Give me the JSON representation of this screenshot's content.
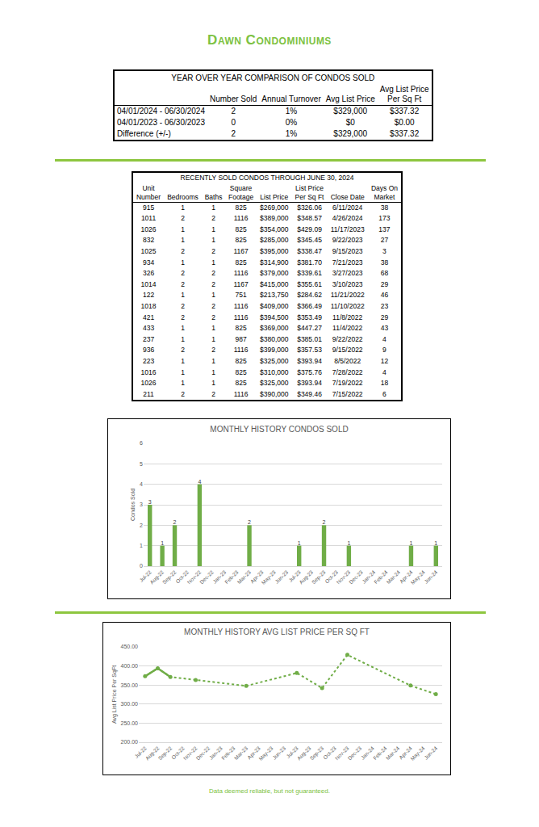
{
  "header": {
    "title": "Dawn Condominiums"
  },
  "comparison_table": {
    "title": "YEAR OVER YEAR COMPARISON OF CONDOS SOLD",
    "columns": [
      [
        "Number Sold"
      ],
      [
        "Annual Turnover"
      ],
      [
        "Avg List Price"
      ],
      [
        "Avg List Price",
        "Per Sq Ft"
      ]
    ],
    "rows": [
      {
        "label": "04/01/2024 - 06/30/2024",
        "cells": [
          "2",
          "1%",
          "$329,000",
          "$337.32"
        ]
      },
      {
        "label": "04/01/2023 - 06/30/2023",
        "cells": [
          "0",
          "0%",
          "$0",
          "$0.00"
        ]
      },
      {
        "label": "Difference (+/-)",
        "cells": [
          "2",
          "1%",
          "$329,000",
          "$337.32"
        ]
      }
    ]
  },
  "recent_sales_table": {
    "title": "RECENTLY SOLD CONDOS THROUGH JUNE 30, 2024",
    "columns": [
      [
        "Unit",
        "Number"
      ],
      [
        "Bedrooms"
      ],
      [
        "Baths"
      ],
      [
        "Square",
        "Footage"
      ],
      [
        "List Price"
      ],
      [
        "List Price",
        "Per Sq Ft"
      ],
      [
        "Close Date"
      ],
      [
        "Days On",
        "Market"
      ]
    ],
    "rows": [
      [
        "915",
        "1",
        "1",
        "825",
        "$269,000",
        "$326.06",
        "6/11/2024",
        "38"
      ],
      [
        "1011",
        "2",
        "2",
        "1116",
        "$389,000",
        "$348.57",
        "4/26/2024",
        "173"
      ],
      [
        "1026",
        "1",
        "1",
        "825",
        "$354,000",
        "$429.09",
        "11/17/2023",
        "137"
      ],
      [
        "832",
        "1",
        "1",
        "825",
        "$285,000",
        "$345.45",
        "9/22/2023",
        "27"
      ],
      [
        "1025",
        "2",
        "2",
        "1167",
        "$395,000",
        "$338.47",
        "9/15/2023",
        "3"
      ],
      [
        "934",
        "1",
        "1",
        "825",
        "$314,900",
        "$381.70",
        "7/21/2023",
        "38"
      ],
      [
        "326",
        "2",
        "2",
        "1116",
        "$379,000",
        "$339.61",
        "3/27/2023",
        "68"
      ],
      [
        "1014",
        "2",
        "2",
        "1167",
        "$415,000",
        "$355.61",
        "3/10/2023",
        "29"
      ],
      [
        "122",
        "1",
        "1",
        "751",
        "$213,750",
        "$284.62",
        "11/21/2022",
        "46"
      ],
      [
        "1018",
        "2",
        "2",
        "1116",
        "$409,000",
        "$366.49",
        "11/10/2022",
        "23"
      ],
      [
        "421",
        "2",
        "2",
        "1116",
        "$394,500",
        "$353.49",
        "11/8/2022",
        "29"
      ],
      [
        "433",
        "1",
        "1",
        "825",
        "$369,000",
        "$447.27",
        "11/4/2022",
        "43"
      ],
      [
        "237",
        "1",
        "1",
        "987",
        "$380,000",
        "$385.01",
        "9/22/2022",
        "4"
      ],
      [
        "936",
        "2",
        "2",
        "1116",
        "$399,000",
        "$357.53",
        "9/15/2022",
        "9"
      ],
      [
        "223",
        "1",
        "1",
        "825",
        "$325,000",
        "$393.94",
        "8/5/2022",
        "12"
      ],
      [
        "1016",
        "1",
        "1",
        "825",
        "$310,000",
        "$375.76",
        "7/28/2022",
        "4"
      ],
      [
        "1026",
        "1",
        "1",
        "825",
        "$325,000",
        "$393.94",
        "7/19/2022",
        "18"
      ],
      [
        "211",
        "2",
        "2",
        "1116",
        "$390,000",
        "$349.46",
        "7/15/2022",
        "6"
      ]
    ]
  },
  "chart_data": [
    {
      "type": "bar",
      "title": "MONTHLY HISTORY CONDOS SOLD",
      "y_label": "Condos Sold",
      "categories": [
        "Jul-22",
        "Aug-22",
        "Sep-22",
        "Oct-22",
        "Nov-22",
        "Dec-22",
        "Jan-23",
        "Feb-23",
        "Mar-23",
        "Apr-23",
        "May-23",
        "Jun-23",
        "Jul-23",
        "Aug-23",
        "Sep-23",
        "Oct-23",
        "Nov-23",
        "Dec-23",
        "Jan-24",
        "Feb-24",
        "Mar-24",
        "Apr-24",
        "May-24",
        "Jun-24"
      ],
      "values": [
        3,
        1,
        2,
        null,
        4,
        null,
        null,
        null,
        2,
        null,
        null,
        null,
        1,
        null,
        2,
        null,
        1,
        null,
        null,
        null,
        null,
        1,
        null,
        1
      ],
      "color": "#70ad47",
      "ylim": [
        0,
        6
      ],
      "yticks": [
        0,
        1,
        2,
        3,
        4,
        5,
        6
      ],
      "grid": true,
      "data_labels": true
    },
    {
      "type": "line",
      "title": "MONTHLY HISTORY AVG LIST PRICE PER SQ FT",
      "y_label": "Avg List Price Per SqFt",
      "categories": [
        "Jul-22",
        "Aug-22",
        "Sep-22",
        "Oct-22",
        "Nov-22",
        "Dec-22",
        "Jan-23",
        "Feb-23",
        "Mar-23",
        "Apr-23",
        "May-23",
        "Jun-23",
        "Jul-23",
        "Aug-23",
        "Sep-23",
        "Oct-23",
        "Nov-23",
        "Dec-23",
        "Jan-24",
        "Feb-24",
        "Mar-24",
        "Apr-24",
        "May-24",
        "Jun-24"
      ],
      "values": [
        373.05,
        393.94,
        371.27,
        null,
        362.97,
        null,
        null,
        null,
        347.61,
        null,
        null,
        null,
        381.7,
        null,
        341.96,
        null,
        429.09,
        null,
        null,
        null,
        null,
        348.57,
        null,
        326.06
      ],
      "color": "#70ad47",
      "marker": "circle",
      "line_style": "dotted",
      "ylim": [
        200,
        450
      ],
      "yticks": [
        {
          "value": 200,
          "label": "200.00"
        },
        {
          "value": 250,
          "label": "250.00"
        },
        {
          "value": 300,
          "label": "300.00"
        },
        {
          "value": 350,
          "label": "350.00"
        },
        {
          "value": 400,
          "label": "400.00"
        },
        {
          "value": 450,
          "label": "450.00"
        }
      ],
      "grid": true
    }
  ],
  "footer": {
    "text": "Data deemed reliable, but not guaranteed."
  }
}
